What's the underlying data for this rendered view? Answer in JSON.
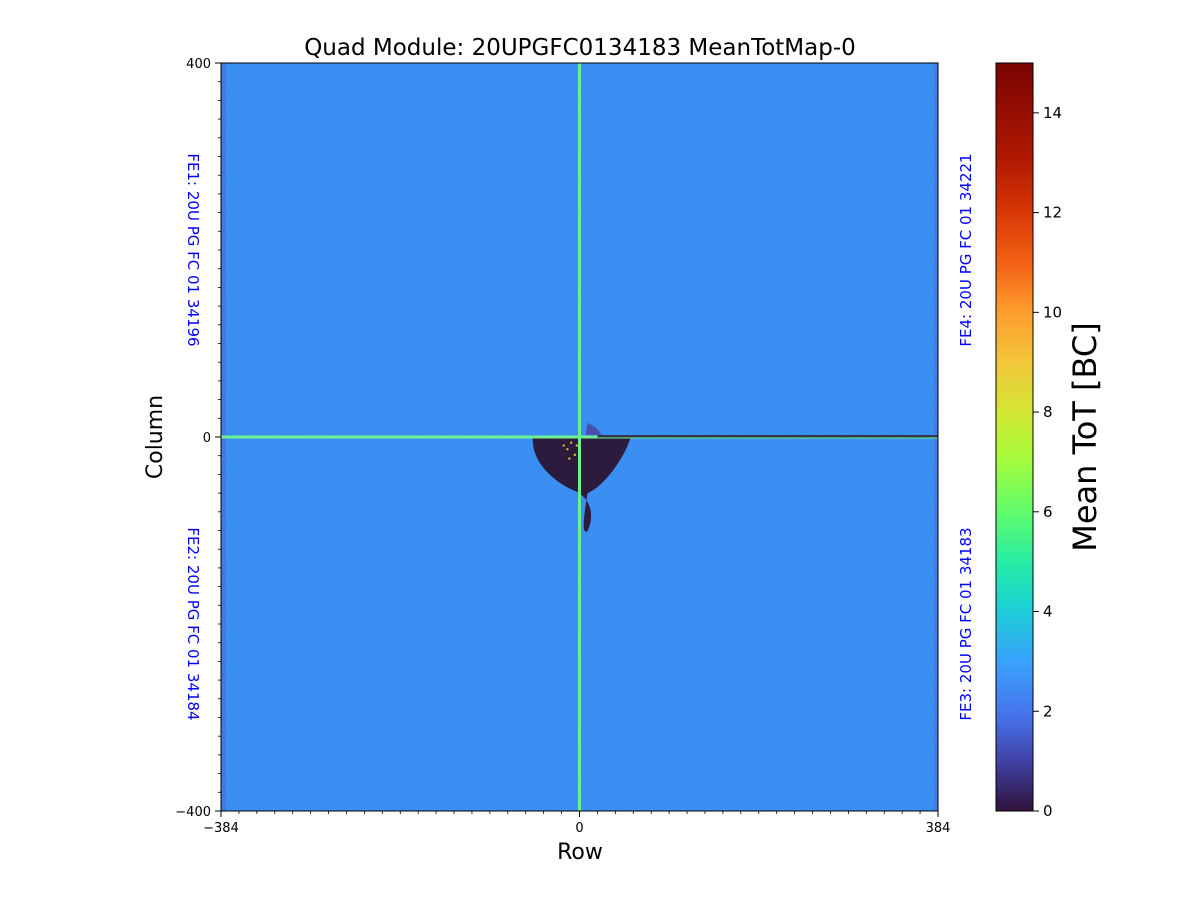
{
  "chart_data": {
    "type": "heatmap",
    "title": "Quad Module: 20UPGFC0134183 MeanTotMap-0",
    "xlabel": "Row",
    "ylabel": "Column",
    "xlim": [
      -384,
      384
    ],
    "ylim": [
      -400,
      400
    ],
    "x_ticks": [
      -384,
      0,
      384
    ],
    "y_ticks": [
      -400,
      0,
      400
    ],
    "x_tick_labels": [
      "−384",
      "0",
      "384"
    ],
    "y_tick_labels": [
      "−400",
      "0",
      "400"
    ],
    "grid": false,
    "colormap": "turbo",
    "colorbar": {
      "label": "Mean ToT [BC]",
      "min": 0,
      "max": 15,
      "ticks": [
        0,
        2,
        4,
        6,
        8,
        10,
        12,
        14
      ],
      "tick_labels": [
        "0",
        "2",
        "4",
        "6",
        "8",
        "10",
        "12",
        "14"
      ]
    },
    "quadrant_labels": [
      {
        "position": "left-top",
        "text": "FE1: 20U PG FC 01 34196"
      },
      {
        "position": "left-bottom",
        "text": "FE2: 20U PG FC 01 34184"
      },
      {
        "position": "right-bottom",
        "text": "FE3: 20U PG FC 01 34183"
      },
      {
        "position": "right-top",
        "text": "FE4: 20U PG FC 01 34221"
      }
    ],
    "typical_value": 3.0,
    "features": {
      "boundary_lines_value": 5.5,
      "dead_region_value": 0.3,
      "dead_region_x_range": [
        -50,
        55
      ],
      "dead_region_y_range": [
        -60,
        0
      ]
    },
    "colors": {
      "quadrant_label": "#0000ff",
      "background_map": "#3a8ef2",
      "boundary_line": "#6cf090",
      "dead_region": "#2d1b3e"
    }
  }
}
